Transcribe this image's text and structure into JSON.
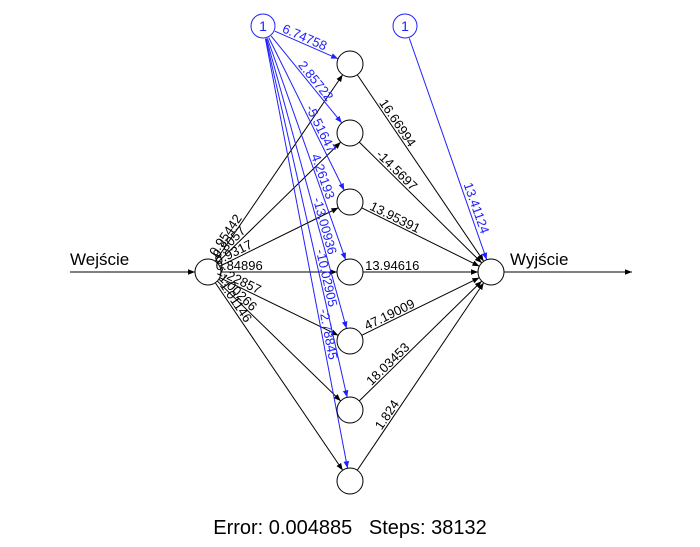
{
  "diagram": {
    "input_label": "Wejście",
    "output_label": "Wyjście",
    "bias_label": "1",
    "input_weights": [
      "0.95442",
      "0.8057",
      "0.9317",
      "0.84896",
      "1.22857",
      "1.00266",
      "1.01146"
    ],
    "hidden_bias_weights": [
      "6.74758",
      "2.85722",
      "-5.51647",
      "4.26193",
      "-13.00936",
      "-10.02905",
      "-2.78845"
    ],
    "output_weights": [
      "16.66994",
      "-14.5697",
      "13.95391",
      "13.94616",
      "47.19009",
      "18.03453",
      "1.824"
    ],
    "output_bias_weight": "13.41124",
    "colors": {
      "weights": "#000000",
      "bias": "#2020ff"
    }
  },
  "footer": {
    "error_text": "Error: 0.004885",
    "steps_text": "Steps: 38132"
  }
}
